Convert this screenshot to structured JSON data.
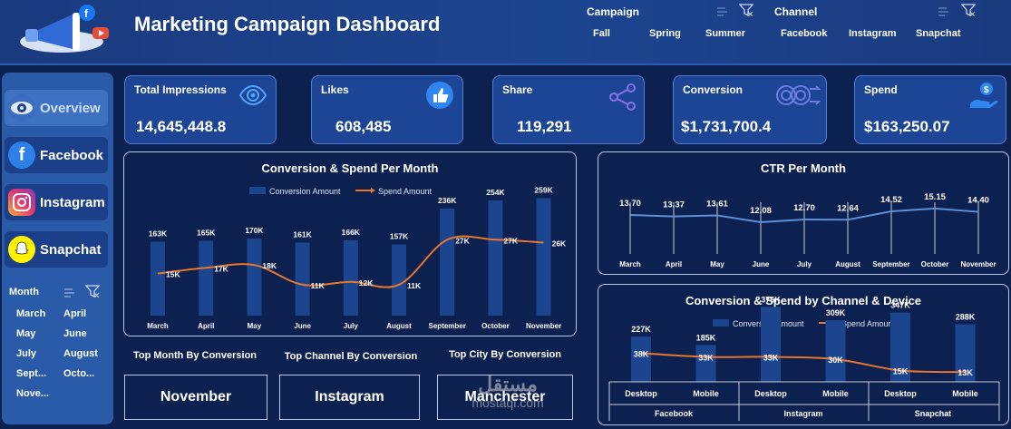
{
  "header": {
    "title": "Marketing Campaign Dashboard",
    "campaign_slicer": {
      "title": "Campaign",
      "items": [
        "Fall",
        "Spring",
        "Summer"
      ]
    },
    "channel_slicer": {
      "title": "Channel",
      "items": [
        "Facebook",
        "Instagram",
        "Snapchat"
      ]
    }
  },
  "sidebar": {
    "nav": [
      {
        "label": "Overview",
        "icon": "eye-icon",
        "active": true
      },
      {
        "label": "Facebook",
        "icon": "facebook-icon",
        "active": false
      },
      {
        "label": "Instagram",
        "icon": "instagram-icon",
        "active": false
      },
      {
        "label": "Snapchat",
        "icon": "snapchat-icon",
        "active": false
      }
    ],
    "month_slicer": {
      "title": "Month",
      "items": [
        "March",
        "April",
        "May",
        "June",
        "July",
        "August",
        "Sept...",
        "Octo...",
        "Nove..."
      ]
    }
  },
  "kpis": [
    {
      "label": "Total Impressions",
      "value": "14,645,448.8",
      "icon": "eye-icon"
    },
    {
      "label": "Likes",
      "value": "608,485",
      "icon": "thumbs-up-icon"
    },
    {
      "label": "Share",
      "value": "119,291",
      "icon": "share-icon"
    },
    {
      "label": "Conversion",
      "value": "$1,731,700.4",
      "icon": "conversion-icon"
    },
    {
      "label": "Spend",
      "value": "$163,250.07",
      "icon": "money-hand-icon"
    }
  ],
  "top": {
    "month": {
      "label": "Top Month By Conversion",
      "value": "November"
    },
    "channel": {
      "label": "Top Channel By Conversion",
      "value": "Instagram"
    },
    "city": {
      "label": "Top City By Conversion",
      "value": "Manchester"
    }
  },
  "watermark": {
    "arabic": "مستقل",
    "latin": "mostaql.com"
  },
  "colors": {
    "bar": "#1c4590",
    "line": "#e8772e",
    "ctr_line": "#5b8fd6",
    "accent": "#2a5ba8"
  },
  "chart_data": [
    {
      "type": "bar",
      "title": "Conversion & Spend Per Month",
      "legend": [
        "Conversion Amount",
        "Spend Amount"
      ],
      "legend_position": "top",
      "categories": [
        "March",
        "April",
        "May",
        "June",
        "July",
        "August",
        "September",
        "October",
        "November"
      ],
      "series": [
        {
          "name": "Conversion Amount",
          "kind": "bar",
          "values": [
            163,
            165,
            170,
            161,
            166,
            157,
            236,
            254,
            259
          ],
          "labels": [
            "163K",
            "165K",
            "170K",
            "161K",
            "166K",
            "157K",
            "236K",
            "254K",
            "259K"
          ]
        },
        {
          "name": "Spend Amount",
          "kind": "line",
          "values": [
            15,
            17,
            18,
            11,
            12,
            11,
            27,
            27,
            26
          ],
          "labels": [
            "15K",
            "17K",
            "18K",
            "11K",
            "12K",
            "11K",
            "27K",
            "27K",
            "26K"
          ]
        }
      ]
    },
    {
      "type": "line",
      "title": "CTR Per Month",
      "categories": [
        "March",
        "April",
        "May",
        "June",
        "July",
        "August",
        "September",
        "October",
        "November"
      ],
      "series": [
        {
          "name": "CTR",
          "values": [
            13.7,
            13.37,
            13.61,
            12.08,
            12.7,
            12.64,
            14.52,
            15.15,
            14.4
          ],
          "labels": [
            "13.70",
            "13.37",
            "13.61",
            "12.08",
            "12.70",
            "12.64",
            "14.52",
            "15.15",
            "14.40"
          ]
        }
      ],
      "grid": "vertical"
    },
    {
      "type": "bar",
      "title": "Conversion & Spend by Channel & Device",
      "legend": [
        "Conversion Amount",
        "Spend Amount"
      ],
      "legend_position": "top",
      "categories": [
        "Desktop",
        "Mobile",
        "Desktop",
        "Mobile",
        "Desktop",
        "Mobile"
      ],
      "groups": [
        "Facebook",
        "Instagram",
        "Snapchat"
      ],
      "series": [
        {
          "name": "Conversion Amount",
          "kind": "bar",
          "values": [
            227,
            185,
            376,
            309,
            347,
            288
          ],
          "labels": [
            "227K",
            "185K",
            "376K",
            "309K",
            "347K",
            "288K"
          ]
        },
        {
          "name": "Spend Amount",
          "kind": "line",
          "values": [
            38,
            33,
            33,
            30,
            15,
            13
          ],
          "labels": [
            "38K",
            "33K",
            "33K",
            "30K",
            "15K",
            "13K"
          ]
        }
      ]
    }
  ]
}
